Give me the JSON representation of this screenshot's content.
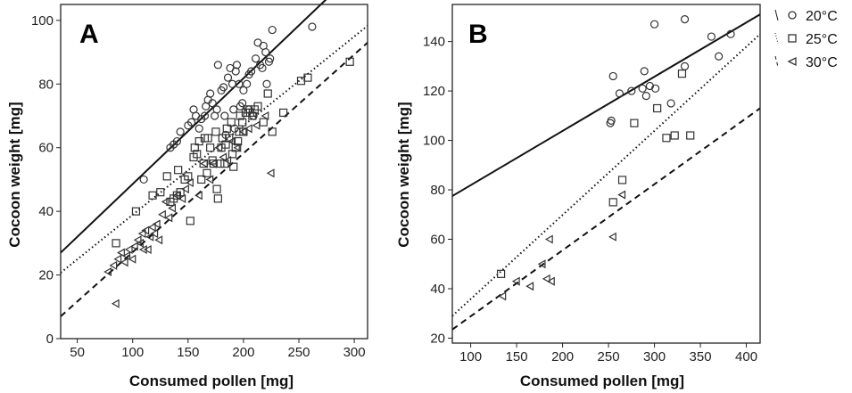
{
  "legend": {
    "entries": [
      {
        "label": "20°C",
        "marker": "circle",
        "line": "solid"
      },
      {
        "label": "25°C",
        "marker": "square",
        "line": "dotted"
      },
      {
        "label": "30°C",
        "marker": "triangle-left",
        "line": "dashed"
      }
    ],
    "placement": "right"
  },
  "chart_data": [
    {
      "panel": "A",
      "type": "scatter",
      "xlabel": "Consumed pollen [mg]",
      "ylabel": "Cocoon weight [mg]",
      "xlim": [
        35,
        312
      ],
      "ylim": [
        0,
        105
      ],
      "xticks": [
        50,
        100,
        150,
        200,
        250,
        300
      ],
      "yticks": [
        0,
        20,
        40,
        60,
        80,
        100
      ],
      "grid": false,
      "series": [
        {
          "name": "20°C",
          "marker": "circle",
          "points": [
            [
              110,
              50
            ],
            [
              134,
              60
            ],
            [
              137,
              61
            ],
            [
              140,
              62
            ],
            [
              143,
              65
            ],
            [
              150,
              67
            ],
            [
              153,
              68
            ],
            [
              155,
              72
            ],
            [
              157,
              70
            ],
            [
              160,
              66
            ],
            [
              162,
              69
            ],
            [
              165,
              70
            ],
            [
              166,
              73
            ],
            [
              168,
              75
            ],
            [
              170,
              77
            ],
            [
              172,
              74
            ],
            [
              174,
              70
            ],
            [
              176,
              72
            ],
            [
              177,
              86
            ],
            [
              180,
              78
            ],
            [
              182,
              79
            ],
            [
              183,
              70
            ],
            [
              186,
              82
            ],
            [
              188,
              85
            ],
            [
              190,
              80
            ],
            [
              191,
              72
            ],
            [
              193,
              84
            ],
            [
              194,
              86
            ],
            [
              196,
              80
            ],
            [
              197,
              73
            ],
            [
              199,
              74
            ],
            [
              200,
              78
            ],
            [
              203,
              80
            ],
            [
              205,
              83
            ],
            [
              207,
              84
            ],
            [
              209,
              70
            ],
            [
              211,
              88
            ],
            [
              213,
              93
            ],
            [
              215,
              86
            ],
            [
              217,
              85
            ],
            [
              218,
              92
            ],
            [
              220,
              90
            ],
            [
              221,
              80
            ],
            [
              223,
              87
            ],
            [
              224,
              88
            ],
            [
              226,
              97
            ],
            [
              262,
              98
            ],
            [
              184,
              64
            ],
            [
              192,
              66
            ],
            [
              205,
              72
            ]
          ]
        },
        {
          "name": "25°C",
          "marker": "square",
          "points": [
            [
              85,
              30
            ],
            [
              103,
              40
            ],
            [
              118,
              45
            ],
            [
              125,
              46
            ],
            [
              131,
              51
            ],
            [
              134,
              43
            ],
            [
              137,
              44
            ],
            [
              140,
              45
            ],
            [
              141,
              53
            ],
            [
              143,
              46
            ],
            [
              147,
              50
            ],
            [
              150,
              51
            ],
            [
              152,
              37
            ],
            [
              155,
              57
            ],
            [
              156,
              60
            ],
            [
              158,
              58
            ],
            [
              160,
              62
            ],
            [
              162,
              50
            ],
            [
              164,
              55
            ],
            [
              165,
              63
            ],
            [
              167,
              52
            ],
            [
              168,
              63
            ],
            [
              170,
              60
            ],
            [
              172,
              56
            ],
            [
              173,
              55
            ],
            [
              175,
              65
            ],
            [
              176,
              47
            ],
            [
              177,
              44
            ],
            [
              179,
              55
            ],
            [
              180,
              60
            ],
            [
              181,
              63
            ],
            [
              183,
              55
            ],
            [
              184,
              61
            ],
            [
              185,
              66
            ],
            [
              187,
              63
            ],
            [
              189,
              68
            ],
            [
              190,
              58
            ],
            [
              191,
              54
            ],
            [
              193,
              60
            ],
            [
              195,
              62
            ],
            [
              196,
              65
            ],
            [
              197,
              70
            ],
            [
              199,
              68
            ],
            [
              200,
              65
            ],
            [
              202,
              71
            ],
            [
              204,
              72
            ],
            [
              206,
              71
            ],
            [
              208,
              70
            ],
            [
              210,
              72
            ],
            [
              213,
              73
            ],
            [
              218,
              68
            ],
            [
              222,
              77
            ],
            [
              226,
              65
            ],
            [
              236,
              71
            ],
            [
              252,
              81
            ],
            [
              258,
              82
            ],
            [
              296,
              87
            ]
          ]
        },
        {
          "name": "30°C",
          "marker": "triangle-left",
          "points": [
            [
              78,
              21
            ],
            [
              83,
              23
            ],
            [
              85,
              11
            ],
            [
              87,
              25
            ],
            [
              90,
              27
            ],
            [
              93,
              24
            ],
            [
              95,
              26
            ],
            [
              97,
              28
            ],
            [
              100,
              25
            ],
            [
              102,
              29
            ],
            [
              105,
              31
            ],
            [
              107,
              30
            ],
            [
              109,
              33
            ],
            [
              110,
              28
            ],
            [
              112,
              34
            ],
            [
              114,
              28
            ],
            [
              116,
              32
            ],
            [
              118,
              35
            ],
            [
              120,
              33
            ],
            [
              122,
              36
            ],
            [
              124,
              31
            ],
            [
              127,
              39
            ],
            [
              130,
              43
            ],
            [
              133,
              38
            ],
            [
              136,
              41
            ],
            [
              140,
              45
            ],
            [
              145,
              44
            ],
            [
              148,
              47
            ],
            [
              152,
              49
            ],
            [
              160,
              45
            ],
            [
              165,
              55
            ],
            [
              170,
              50
            ],
            [
              173,
              55
            ],
            [
              178,
              60
            ],
            [
              182,
              57
            ],
            [
              186,
              56
            ],
            [
              190,
              62
            ],
            [
              195,
              60
            ],
            [
              200,
              65
            ],
            [
              205,
              66
            ],
            [
              212,
              67
            ],
            [
              220,
              70
            ],
            [
              225,
              52
            ]
          ]
        }
      ],
      "fits": [
        {
          "name": "20°C",
          "style": "solid",
          "x": [
            35,
            312
          ],
          "y": [
            27,
            119
          ]
        },
        {
          "name": "25°C",
          "style": "dotted",
          "x": [
            35,
            312
          ],
          "y": [
            20.7,
            98.3
          ]
        },
        {
          "name": "30°C",
          "style": "dashed",
          "x": [
            35,
            312
          ],
          "y": [
            7,
            93
          ]
        }
      ]
    },
    {
      "panel": "B",
      "type": "scatter",
      "xlabel": "Consumed pollen [mg]",
      "ylabel": "Cocoon weight [mg]",
      "xlim": [
        80,
        415
      ],
      "ylim": [
        18,
        155
      ],
      "xticks": [
        100,
        150,
        200,
        250,
        300,
        350,
        400
      ],
      "yticks": [
        20,
        40,
        60,
        80,
        100,
        120,
        140
      ],
      "grid": false,
      "series": [
        {
          "name": "20°C",
          "marker": "circle",
          "points": [
            [
              252,
              107
            ],
            [
              253,
              108
            ],
            [
              255,
              126
            ],
            [
              262,
              119
            ],
            [
              275,
              120
            ],
            [
              287,
              121
            ],
            [
              289,
              128
            ],
            [
              291,
              118
            ],
            [
              295,
              122
            ],
            [
              300,
              147
            ],
            [
              301,
              121
            ],
            [
              318,
              115
            ],
            [
              333,
              130
            ],
            [
              333,
              149
            ],
            [
              362,
              142
            ],
            [
              370,
              134
            ],
            [
              383,
              143
            ]
          ]
        },
        {
          "name": "25°C",
          "marker": "square",
          "points": [
            [
              133,
              46
            ],
            [
              255,
              75
            ],
            [
              265,
              84
            ],
            [
              278,
              107
            ],
            [
              303,
              113
            ],
            [
              313,
              101
            ],
            [
              322,
              102
            ],
            [
              330,
              127
            ],
            [
              339,
              102
            ]
          ]
        },
        {
          "name": "30°C",
          "marker": "triangle-left",
          "points": [
            [
              135,
              37
            ],
            [
              150,
              43
            ],
            [
              165,
              41
            ],
            [
              178,
              50
            ],
            [
              183,
              44
            ],
            [
              186,
              60
            ],
            [
              188,
              43
            ],
            [
              255,
              61
            ],
            [
              265,
              78
            ]
          ]
        }
      ],
      "fits": [
        {
          "name": "20°C",
          "style": "solid",
          "x": [
            80,
            415
          ],
          "y": [
            77.5,
            151
          ]
        },
        {
          "name": "25°C",
          "style": "dotted",
          "x": [
            80,
            415
          ],
          "y": [
            29,
            143
          ]
        },
        {
          "name": "30°C",
          "style": "dashed",
          "x": [
            80,
            415
          ],
          "y": [
            23.5,
            113
          ]
        }
      ]
    }
  ]
}
